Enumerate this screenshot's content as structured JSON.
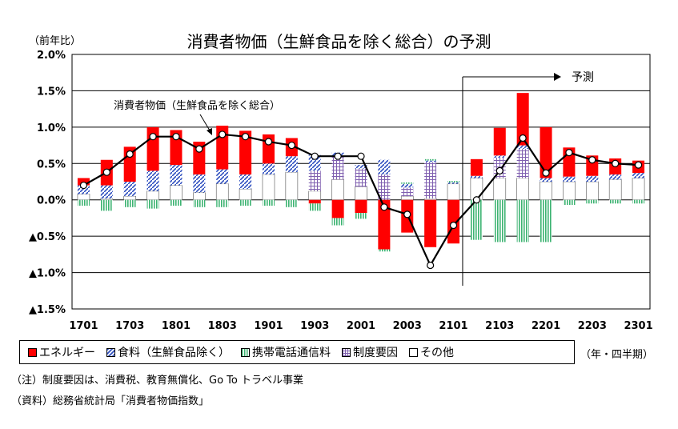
{
  "chart_data": {
    "type": "bar",
    "title": "消費者物価（生鮮食品を除く総合）の予測",
    "y_unit": "（前年比）",
    "period_unit": "（年・四半期）",
    "x_tick_labels": [
      "1701",
      "1703",
      "1801",
      "1803",
      "1901",
      "1903",
      "2001",
      "2003",
      "2101",
      "2103",
      "2201",
      "2203",
      "2301"
    ],
    "y_ticks": [
      {
        "v": 2.0,
        "label": "2.0%"
      },
      {
        "v": 1.5,
        "label": "1.5%"
      },
      {
        "v": 1.0,
        "label": "1.0%"
      },
      {
        "v": 0.5,
        "label": "0.5%"
      },
      {
        "v": 0.0,
        "label": "0.0%"
      },
      {
        "v": -0.5,
        "label": "▲0.5%"
      },
      {
        "v": -1.0,
        "label": "▲1.0%"
      },
      {
        "v": -1.5,
        "label": "▲1.5%"
      }
    ],
    "ylim": [
      -1.5,
      2.0
    ],
    "grid": true,
    "legend_position": "bottom",
    "forecast_label": "予測",
    "forecast_start_period": "2102",
    "line_annotation": "消費者物価（生鮮食品を除く総合）",
    "periods": [
      "1701",
      "1702",
      "1703",
      "1704",
      "1801",
      "1802",
      "1803",
      "1804",
      "1901",
      "1902",
      "1903",
      "1904",
      "2001",
      "2002",
      "2003",
      "2004",
      "2101",
      "2102",
      "2103",
      "2104",
      "2201",
      "2202",
      "2203",
      "2204",
      "2301"
    ],
    "series": [
      {
        "name": "エネルギー",
        "color": "#ff0000",
        "pattern": "solid",
        "values": [
          0.1,
          0.35,
          0.48,
          0.6,
          0.48,
          0.45,
          0.6,
          0.6,
          0.4,
          0.25,
          -0.05,
          -0.25,
          -0.18,
          -0.68,
          -0.45,
          -0.65,
          -0.6,
          0.23,
          0.38,
          0.72,
          0.7,
          0.4,
          0.28,
          0.22,
          0.17
        ]
      },
      {
        "name": "食料（生鮮食品除く）",
        "color": "#3050c0",
        "pattern": "diagonal",
        "values": [
          0.12,
          0.18,
          0.2,
          0.28,
          0.28,
          0.25,
          0.2,
          0.2,
          0.15,
          0.22,
          0.22,
          0.05,
          0.05,
          0.2,
          0.05,
          0.02,
          0.02,
          0.03,
          0.03,
          0.05,
          0.05,
          0.07,
          0.08,
          0.07,
          0.07
        ]
      },
      {
        "name": "携帯電話通信料",
        "color": "#3cb371",
        "pattern": "vertical",
        "values": [
          -0.08,
          -0.15,
          -0.1,
          -0.12,
          -0.08,
          -0.1,
          -0.1,
          -0.08,
          -0.08,
          -0.1,
          -0.1,
          -0.1,
          -0.08,
          -0.03,
          0.02,
          0.02,
          0.02,
          -0.55,
          -0.58,
          -0.58,
          -0.58,
          -0.07,
          -0.05,
          -0.05,
          -0.05
        ]
      },
      {
        "name": "制度要因",
        "color": "#8060b0",
        "pattern": "grid",
        "values": [
          0.0,
          0.0,
          0.0,
          0.0,
          0.0,
          0.0,
          0.0,
          0.0,
          0.0,
          0.0,
          0.28,
          0.32,
          0.25,
          0.35,
          0.12,
          0.5,
          0.0,
          0.0,
          0.28,
          0.4,
          0.0,
          0.0,
          0.0,
          0.0,
          0.0
        ]
      },
      {
        "name": "その他",
        "color": "#ffffff",
        "pattern": "solid",
        "values": [
          0.08,
          0.02,
          0.05,
          0.12,
          0.2,
          0.1,
          0.22,
          0.15,
          0.35,
          0.38,
          0.12,
          0.28,
          0.18,
          0.0,
          0.05,
          0.02,
          0.22,
          0.3,
          0.3,
          0.3,
          0.25,
          0.25,
          0.25,
          0.28,
          0.3
        ]
      },
      {
        "name": "消費者物価（生鮮食品を除く総合）",
        "type": "line",
        "color": "#000000",
        "values": [
          0.2,
          0.38,
          0.63,
          0.87,
          0.87,
          0.7,
          0.9,
          0.87,
          0.8,
          0.75,
          0.6,
          0.6,
          0.6,
          -0.1,
          -0.2,
          -0.9,
          -0.35,
          0.0,
          0.4,
          0.85,
          0.37,
          0.65,
          0.55,
          0.5,
          0.48
        ]
      }
    ]
  },
  "footnotes": {
    "note": "（注）制度要因は、消費税、教育無償化、Go To トラベル事業",
    "source": "（資料）総務省統計局「消費者物価指数」"
  }
}
